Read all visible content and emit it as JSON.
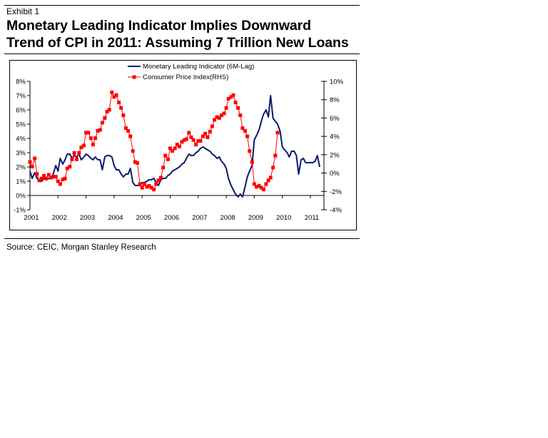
{
  "header": {
    "exhibit_label": "Exhibit 1",
    "title_line1": "Monetary Leading Indicator Implies Downward",
    "title_line2": "Trend of CPI in 2011: Assuming 7 Trillion New Loans"
  },
  "footer": {
    "source": "Source: CEIC, Morgan Stanley Research"
  },
  "colors": {
    "mli": "#0a1a6e",
    "cpi": "#ff0000"
  },
  "chart_data": {
    "type": "line",
    "title": "Monetary Leading Indicator Implies Downward Trend of CPI in 2011: Assuming 7 Trillion New Loans",
    "xlabel": "",
    "ylabel": "",
    "grid": false,
    "legend_position": "top-center",
    "x_ticks": [
      "2001",
      "2002",
      "2003",
      "2004",
      "2005",
      "2006",
      "2007",
      "2008",
      "2009",
      "2010",
      "2011"
    ],
    "xlim": [
      2001,
      2011.35
    ],
    "y_left": {
      "ticks": [
        "8%",
        "7%",
        "6%",
        "5%",
        "4%",
        "3%",
        "2%",
        "1%",
        "0%",
        "-1%"
      ],
      "ylim": [
        -1,
        8
      ]
    },
    "y_right": {
      "ticks": [
        "10%",
        "8%",
        "6%",
        "4%",
        "2%",
        "0%",
        "-2%",
        "-4%"
      ],
      "ylim": [
        -4,
        10
      ]
    },
    "series": [
      {
        "name": "Monetary Leading Indicator (6M-Lag)",
        "axis": "left",
        "marker": "none",
        "x": [
          2001.0,
          2001.08,
          2001.17,
          2001.25,
          2001.33,
          2001.42,
          2001.5,
          2001.58,
          2001.67,
          2001.75,
          2001.83,
          2001.92,
          2002.0,
          2002.08,
          2002.17,
          2002.25,
          2002.33,
          2002.42,
          2002.5,
          2002.58,
          2002.67,
          2002.75,
          2002.83,
          2002.92,
          2003.0,
          2003.08,
          2003.17,
          2003.25,
          2003.33,
          2003.42,
          2003.5,
          2003.58,
          2003.67,
          2003.75,
          2003.83,
          2003.92,
          2004.0,
          2004.08,
          2004.17,
          2004.25,
          2004.33,
          2004.42,
          2004.5,
          2004.58,
          2004.67,
          2004.75,
          2004.83,
          2004.92,
          2005.0,
          2005.08,
          2005.17,
          2005.25,
          2005.33,
          2005.42,
          2005.5,
          2005.58,
          2005.67,
          2005.75,
          2005.83,
          2005.92,
          2006.0,
          2006.08,
          2006.17,
          2006.25,
          2006.33,
          2006.42,
          2006.5,
          2006.58,
          2006.67,
          2006.75,
          2006.83,
          2006.92,
          2007.0,
          2007.08,
          2007.17,
          2007.25,
          2007.33,
          2007.42,
          2007.5,
          2007.58,
          2007.67,
          2007.75,
          2007.83,
          2007.92,
          2008.0,
          2008.08,
          2008.17,
          2008.25,
          2008.33,
          2008.42,
          2008.5,
          2008.58,
          2008.67,
          2008.75,
          2008.83,
          2008.92,
          2009.0,
          2009.08,
          2009.17,
          2009.25,
          2009.33,
          2009.42,
          2009.5,
          2009.58,
          2009.67,
          2009.75,
          2009.83,
          2009.92,
          2010.0,
          2010.08,
          2010.17,
          2010.25,
          2010.33,
          2010.42,
          2010.5,
          2010.58,
          2010.67,
          2010.75,
          2010.83,
          2010.92,
          2011.0,
          2011.08,
          2011.17,
          2011.25,
          2011.33
        ],
        "values": [
          1.7,
          1.2,
          1.6,
          1.2,
          1.1,
          1.0,
          1.2,
          1.1,
          1.2,
          1.2,
          1.5,
          2.1,
          1.7,
          2.6,
          2.2,
          2.5,
          2.9,
          2.9,
          2.6,
          2.8,
          2.7,
          2.9,
          2.5,
          2.7,
          2.9,
          2.8,
          2.6,
          2.5,
          2.7,
          2.5,
          2.5,
          1.8,
          2.7,
          2.8,
          2.8,
          2.7,
          2.1,
          1.8,
          1.8,
          1.5,
          1.3,
          1.5,
          1.5,
          1.9,
          0.9,
          0.7,
          0.7,
          0.7,
          0.9,
          0.9,
          1.0,
          1.1,
          1.1,
          1.2,
          0.9,
          0.7,
          1.1,
          1.2,
          1.2,
          1.4,
          1.5,
          1.7,
          1.8,
          1.9,
          2.0,
          2.2,
          2.3,
          2.6,
          2.9,
          2.8,
          2.8,
          3.0,
          3.1,
          3.3,
          3.4,
          3.3,
          3.2,
          3.1,
          2.9,
          2.8,
          2.6,
          2.7,
          2.4,
          2.2,
          1.9,
          1.2,
          0.7,
          0.4,
          0.1,
          -0.1,
          0.1,
          -0.1,
          0.6,
          1.3,
          1.7,
          2.1,
          3.9,
          4.2,
          4.6,
          5.2,
          5.7,
          6.0,
          5.5,
          7.0,
          5.4,
          5.2,
          5.0,
          4.5,
          3.4,
          3.2,
          3.0,
          2.7,
          3.1,
          3.1,
          2.8,
          1.5,
          2.5,
          2.6,
          2.3,
          2.3,
          2.3,
          2.3,
          2.4,
          2.8,
          2.0
        ],
        "color": "#0a1a6e"
      },
      {
        "name": "Consumer Price Index(RHS)",
        "axis": "right",
        "marker": "square",
        "x": [
          2001.0,
          2001.08,
          2001.17,
          2001.25,
          2001.33,
          2001.42,
          2001.5,
          2001.58,
          2001.67,
          2001.75,
          2001.83,
          2001.92,
          2002.0,
          2002.08,
          2002.17,
          2002.25,
          2002.33,
          2002.42,
          2002.5,
          2002.58,
          2002.67,
          2002.75,
          2002.83,
          2002.92,
          2003.0,
          2003.08,
          2003.17,
          2003.25,
          2003.33,
          2003.42,
          2003.5,
          2003.58,
          2003.67,
          2003.75,
          2003.83,
          2003.92,
          2004.0,
          2004.08,
          2004.17,
          2004.25,
          2004.33,
          2004.42,
          2004.5,
          2004.58,
          2004.67,
          2004.75,
          2004.83,
          2004.92,
          2005.0,
          2005.08,
          2005.17,
          2005.25,
          2005.33,
          2005.42,
          2005.5,
          2005.58,
          2005.67,
          2005.75,
          2005.83,
          2005.92,
          2006.0,
          2006.08,
          2006.17,
          2006.25,
          2006.33,
          2006.42,
          2006.5,
          2006.58,
          2006.67,
          2006.75,
          2006.83,
          2006.92,
          2007.0,
          2007.08,
          2007.17,
          2007.25,
          2007.33,
          2007.42,
          2007.5,
          2007.58,
          2007.67,
          2007.75,
          2007.83,
          2007.92,
          2008.0,
          2008.08,
          2008.17,
          2008.25,
          2008.33,
          2008.42,
          2008.5,
          2008.58,
          2008.67,
          2008.75,
          2008.83,
          2008.92,
          2009.0,
          2009.08,
          2009.17,
          2009.25,
          2009.33,
          2009.42,
          2009.5,
          2009.58,
          2009.67,
          2009.75,
          2009.83
        ],
        "values": [
          1.2,
          0.7,
          1.6,
          -0.1,
          -0.8,
          -0.6,
          -0.3,
          -0.6,
          -0.2,
          -0.5,
          -0.4,
          -0.4,
          -0.9,
          -1.2,
          -0.7,
          -0.6,
          0.5,
          0.7,
          1.5,
          2.2,
          1.5,
          2.2,
          2.8,
          3.0,
          4.4,
          4.4,
          3.8,
          3.1,
          3.8,
          4.6,
          4.7,
          5.5,
          6.0,
          6.7,
          6.9,
          8.8,
          8.3,
          8.5,
          7.7,
          7.1,
          6.3,
          4.9,
          4.6,
          4.0,
          2.4,
          1.2,
          1.1,
          -1.2,
          -1.6,
          -1.2,
          -1.5,
          -1.4,
          -1.6,
          -1.8,
          -1.2,
          -0.8,
          -0.5,
          0.6,
          1.9,
          1.5,
          2.7,
          2.4,
          2.7,
          3.1,
          2.9,
          3.4,
          3.6,
          3.7,
          4.4,
          3.9,
          3.6,
          3.1,
          3.5,
          3.5,
          4.0,
          4.3,
          3.9,
          4.5,
          5.1,
          5.8,
          6.1,
          6.0,
          6.3,
          6.5,
          7.1,
          8.1,
          8.3,
          8.5,
          7.7,
          7.1,
          6.3,
          4.9,
          4.6,
          4.0,
          2.4,
          1.2,
          -1.2,
          -1.5,
          -1.4,
          -1.6,
          -1.8,
          -1.2,
          -0.8,
          -0.5,
          0.6,
          1.9,
          4.4
        ],
        "color": "#ff0000"
      }
    ]
  }
}
